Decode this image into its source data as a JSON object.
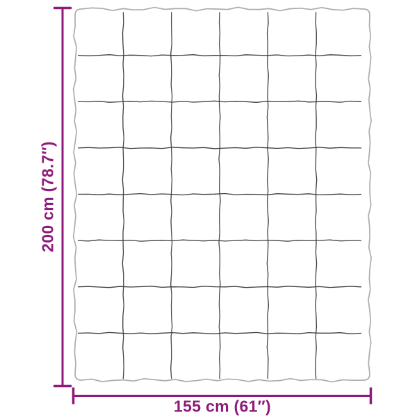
{
  "diagram": {
    "type": "product-dimension-diagram",
    "subject": "quilted-blanket",
    "height_label": "200 cm (78.7″)",
    "width_label": "155 cm (61″)",
    "grid": {
      "columns": 6,
      "rows": 8
    },
    "colors": {
      "dimension": "#8E1A7B",
      "outline": "#ACACAC",
      "grid_line": "#3E3E3E",
      "background": "#FFFFFF"
    }
  }
}
